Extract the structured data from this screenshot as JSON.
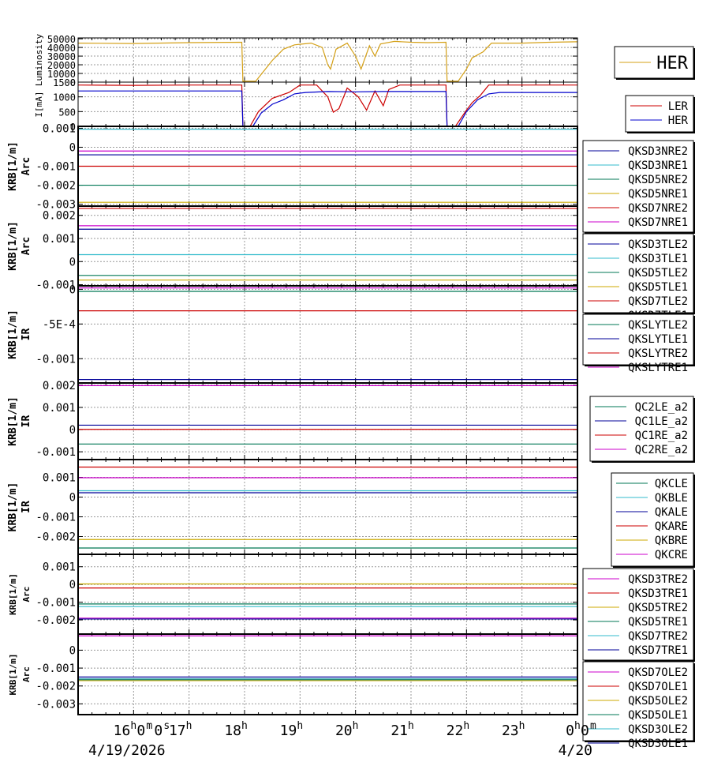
{
  "chart_data": [
    {
      "type": "line",
      "ylabel": "Luminosity",
      "ylim": [
        0,
        51000
      ],
      "yticks": [
        {
          "v": 50000,
          "label": "50000"
        },
        {
          "v": 40000,
          "label": "40000"
        },
        {
          "v": 30000,
          "label": "30000"
        },
        {
          "v": 20000,
          "label": "20000"
        },
        {
          "v": 10000,
          "label": "10000"
        },
        {
          "v": 0,
          "label": "0"
        }
      ],
      "legend": [
        "HER"
      ],
      "series": [
        {
          "name": "HER",
          "color": "#d4a017",
          "points": [
            [
              15,
              45000
            ],
            [
              16,
              44500
            ],
            [
              17,
              45500
            ],
            [
              17.95,
              46000
            ],
            [
              17.97,
              1000
            ],
            [
              18.2,
              1000
            ],
            [
              18.5,
              25000
            ],
            [
              18.7,
              38000
            ],
            [
              18.9,
              43000
            ],
            [
              19.2,
              45000
            ],
            [
              19.4,
              40000
            ],
            [
              19.5,
              20000
            ],
            [
              19.55,
              15000
            ],
            [
              19.65,
              38000
            ],
            [
              19.85,
              45000
            ],
            [
              20,
              30000
            ],
            [
              20.1,
              15000
            ],
            [
              20.25,
              42000
            ],
            [
              20.35,
              30000
            ],
            [
              20.45,
              44000
            ],
            [
              20.7,
              47000
            ],
            [
              21,
              46000
            ],
            [
              21.3,
              45500
            ],
            [
              21.63,
              46000
            ],
            [
              21.65,
              1000
            ],
            [
              21.85,
              1000
            ],
            [
              22,
              15000
            ],
            [
              22.1,
              28000
            ],
            [
              22.3,
              35000
            ],
            [
              22.45,
              45000
            ],
            [
              23,
              45000
            ],
            [
              23.5,
              46000
            ],
            [
              24,
              46500
            ]
          ]
        }
      ]
    },
    {
      "type": "line",
      "ylabel": "I[mA]",
      "ylim": [
        0,
        1500
      ],
      "yticks": [
        {
          "v": 1500,
          "label": "1500"
        },
        {
          "v": 1000,
          "label": "1000"
        },
        {
          "v": 500,
          "label": "500"
        },
        {
          "v": 0,
          "label": "0"
        }
      ],
      "legend": [
        "LER",
        "HER"
      ],
      "series": [
        {
          "name": "LER",
          "color": "#cc0000",
          "points": [
            [
              15,
              1400
            ],
            [
              16,
              1390
            ],
            [
              17,
              1400
            ],
            [
              17.95,
              1400
            ],
            [
              17.97,
              0
            ],
            [
              18.1,
              0
            ],
            [
              18.25,
              500
            ],
            [
              18.5,
              950
            ],
            [
              18.8,
              1150
            ],
            [
              19,
              1400
            ],
            [
              19.3,
              1400
            ],
            [
              19.5,
              1000
            ],
            [
              19.6,
              480
            ],
            [
              19.7,
              600
            ],
            [
              19.85,
              1300
            ],
            [
              20.05,
              1000
            ],
            [
              20.2,
              550
            ],
            [
              20.35,
              1200
            ],
            [
              20.5,
              700
            ],
            [
              20.6,
              1250
            ],
            [
              20.8,
              1400
            ],
            [
              21,
              1400
            ],
            [
              21.63,
              1400
            ],
            [
              21.65,
              0
            ],
            [
              21.8,
              0
            ],
            [
              22,
              550
            ],
            [
              22.1,
              800
            ],
            [
              22.25,
              1050
            ],
            [
              22.4,
              1400
            ],
            [
              23,
              1400
            ],
            [
              24,
              1400
            ]
          ]
        },
        {
          "name": "HER",
          "color": "#0000cc",
          "points": [
            [
              15,
              1200
            ],
            [
              16,
              1200
            ],
            [
              17,
              1200
            ],
            [
              17.95,
              1200
            ],
            [
              17.97,
              0
            ],
            [
              18.15,
              0
            ],
            [
              18.3,
              450
            ],
            [
              18.5,
              750
            ],
            [
              18.7,
              900
            ],
            [
              18.9,
              1100
            ],
            [
              19.1,
              1150
            ],
            [
              19.5,
              1180
            ],
            [
              20,
              1170
            ],
            [
              20.5,
              1180
            ],
            [
              21,
              1180
            ],
            [
              21.63,
              1180
            ],
            [
              21.65,
              0
            ],
            [
              21.85,
              0
            ],
            [
              22,
              500
            ],
            [
              22.2,
              900
            ],
            [
              22.4,
              1100
            ],
            [
              22.6,
              1150
            ],
            [
              23,
              1150
            ],
            [
              24,
              1150
            ]
          ]
        }
      ]
    },
    {
      "type": "line",
      "ylabel": "KRB[1/m]",
      "sublabel": "Arc",
      "ylim": [
        -0.0031,
        0.0011
      ],
      "yticks": [
        {
          "v": 0.001,
          "label": "0.001"
        },
        {
          "v": 0,
          "label": "0"
        },
        {
          "v": -0.001,
          "label": "-0.001"
        },
        {
          "v": -0.002,
          "label": "-0.002"
        },
        {
          "v": -0.003,
          "label": "-0.003"
        }
      ],
      "legend": [
        "QKSD3NRE2",
        "QKSD3NRE1",
        "QKSD5NRE2",
        "QKSD5NRE1",
        "QKSD7NRE2",
        "QKSD7NRE1"
      ],
      "series": [
        {
          "name": "QKSD3NRE2",
          "color": "#000099",
          "value": -0.0004
        },
        {
          "name": "QKSD3NRE1",
          "color": "#33bbcc",
          "value": 0.00095
        },
        {
          "name": "QKSD5NRE2",
          "color": "#007755",
          "value": -0.002
        },
        {
          "name": "QKSD5NRE1",
          "color": "#ccaa00",
          "value": -0.0029
        },
        {
          "name": "QKSD7NRE2",
          "color": "#cc0000",
          "value": -0.001
        },
        {
          "name": "QKSD7NRE1",
          "color": "#cc00cc",
          "value": -0.0002
        }
      ]
    },
    {
      "type": "line",
      "ylabel": "KRB[1/m]",
      "sublabel": "Arc",
      "ylim": [
        -0.00105,
        0.0024
      ],
      "yticks": [
        {
          "v": 0.002,
          "label": "0.002"
        },
        {
          "v": 0.001,
          "label": "0.001"
        },
        {
          "v": 0,
          "label": "0"
        },
        {
          "v": -0.001,
          "label": "-0.001"
        }
      ],
      "legend": [
        "QKSD3TLE2",
        "QKSD3TLE1",
        "QKSD5TLE2",
        "QKSD5TLE1",
        "QKSD7TLE2",
        "QKSD7TLE1"
      ],
      "series": [
        {
          "name": "QKSD3TLE2",
          "color": "#000099",
          "value": 0.0014
        },
        {
          "name": "QKSD3TLE1",
          "color": "#33bbcc",
          "value": 0.0003
        },
        {
          "name": "QKSD5TLE2",
          "color": "#007755",
          "value": -0.0006
        },
        {
          "name": "QKSD5TLE1",
          "color": "#ccaa00",
          "value": -0.0008
        },
        {
          "name": "QKSD7TLE2",
          "color": "#cc0000",
          "value": 0.0023
        },
        {
          "name": "QKSD7TLE1",
          "color": "#cc00cc",
          "value": 0.00155
        }
      ]
    },
    {
      "type": "line",
      "ylabel": "KRB[1/m]",
      "sublabel": "IR",
      "ylim": [
        -0.00135,
        5e-05
      ],
      "yticks": [
        {
          "v": 0,
          "label": "0"
        },
        {
          "v": -0.0005,
          "label": "-5E-4"
        },
        {
          "v": -0.001,
          "label": "-0.001"
        }
      ],
      "legend": [
        "QKSLYTLE2",
        "QKSLYTLE1",
        "QKSLYTRE2",
        "QKSLYTRE1"
      ],
      "series": [
        {
          "name": "QKSLYTLE2",
          "color": "#007755",
          "value": -3e-05
        },
        {
          "name": "QKSLYTLE1",
          "color": "#000099",
          "value": -0.0013
        },
        {
          "name": "QKSLYTRE2",
          "color": "#cc0000",
          "value": -0.00031
        },
        {
          "name": "QKSLYTRE1",
          "color": "#cc00cc",
          "value": 2e-05
        }
      ]
    },
    {
      "type": "line",
      "ylabel": "KRB[1/m]",
      "sublabel": "IR",
      "ylim": [
        -0.00135,
        0.0021
      ],
      "yticks": [
        {
          "v": 0.002,
          "label": "0.002"
        },
        {
          "v": 0.001,
          "label": "0.001"
        },
        {
          "v": 0,
          "label": "0"
        },
        {
          "v": -0.001,
          "label": "-0.001"
        }
      ],
      "legend": [
        "QC2LE_a2",
        "QC1LE_a2",
        "QC1RE_a2",
        "QC2RE_a2"
      ],
      "series": [
        {
          "name": "QC2LE_a2",
          "color": "#007755",
          "value": -0.00065
        },
        {
          "name": "QC1LE_a2",
          "color": "#000099",
          "value": 0.0002
        },
        {
          "name": "QC1RE_a2",
          "color": "#cc0000",
          "value": 1e-05
        },
        {
          "name": "QC2RE_a2",
          "color": "#cc00cc",
          "value": 0.00198
        }
      ]
    },
    {
      "type": "line",
      "ylabel": "KRB[1/m]",
      "sublabel": "IR",
      "ylim": [
        -0.0029,
        0.0019
      ],
      "yticks": [
        {
          "v": 0.001,
          "label": "0.001"
        },
        {
          "v": 0,
          "label": "0"
        },
        {
          "v": -0.001,
          "label": "-0.001"
        },
        {
          "v": -0.002,
          "label": "-0.002"
        }
      ],
      "legend": [
        "QKCLE",
        "QKBLE",
        "QKALE",
        "QKARE",
        "QKBRE",
        "QKCRE"
      ],
      "series": [
        {
          "name": "QKCLE",
          "color": "#007755",
          "value": -0.00258
        },
        {
          "name": "QKBLE",
          "color": "#33bbcc",
          "value": 0.00032
        },
        {
          "name": "QKALE",
          "color": "#000099",
          "value": 0.00022
        },
        {
          "name": "QKARE",
          "color": "#cc0000",
          "value": 0.00152
        },
        {
          "name": "QKBRE",
          "color": "#ccaa00",
          "value": -0.00215
        },
        {
          "name": "QKCRE",
          "color": "#cc00cc",
          "value": 0.00098
        }
      ]
    },
    {
      "type": "line",
      "ylabel": "KRB[1/m]",
      "sublabel": "Arc",
      "ylim": [
        -0.0028,
        0.0017
      ],
      "yticks": [
        {
          "v": 0.001,
          "label": "0.001"
        },
        {
          "v": 0,
          "label": "0"
        },
        {
          "v": -0.001,
          "label": "-0.001"
        },
        {
          "v": -0.002,
          "label": "-0.002"
        }
      ],
      "legend": [
        "QKSD3TRE2",
        "QKSD3TRE1",
        "QKSD5TRE2",
        "QKSD5TRE1",
        "QKSD7TRE2",
        "QKSD7TRE1"
      ],
      "series": [
        {
          "name": "QKSD3TRE2",
          "color": "#cc00cc",
          "value": -0.0019
        },
        {
          "name": "QKSD3TRE1",
          "color": "#cc0000",
          "value": -0.0002
        },
        {
          "name": "QKSD5TRE2",
          "color": "#ccaa00",
          "value": 3e-05
        },
        {
          "name": "QKSD5TRE1",
          "color": "#007755",
          "value": -0.0011
        },
        {
          "name": "QKSD7TRE2",
          "color": "#33bbcc",
          "value": -0.00125
        },
        {
          "name": "QKSD7TRE1",
          "color": "#000099",
          "value": -0.00195
        }
      ]
    },
    {
      "type": "line",
      "ylabel": "KRB[1/m]",
      "sublabel": "Arc",
      "ylim": [
        -0.0036,
        0.0009
      ],
      "yticks": [
        {
          "v": 0,
          "label": "0"
        },
        {
          "v": -0.001,
          "label": "-0.001"
        },
        {
          "v": -0.002,
          "label": "-0.002"
        },
        {
          "v": -0.003,
          "label": "-0.003"
        }
      ],
      "legend": [
        "QKSD7OLE2",
        "QKSD7OLE1",
        "QKSD5OLE2",
        "QKSD5OLE1",
        "QKSD3OLE2",
        "QKSD3OLE1"
      ],
      "series": [
        {
          "name": "QKSD7OLE2",
          "color": "#cc00cc",
          "value": 0.0008
        },
        {
          "name": "QKSD7OLE1",
          "color": "#cc0000",
          "value": -0.0016
        },
        {
          "name": "QKSD5OLE2",
          "color": "#ccaa00",
          "value": -0.0017
        },
        {
          "name": "QKSD5OLE1",
          "color": "#007755",
          "value": -0.00165
        },
        {
          "name": "QKSD3OLE2",
          "color": "#33bbcc",
          "value": -0.0016
        },
        {
          "name": "QKSD3OLE1",
          "color": "#000099",
          "value": -0.0015
        }
      ]
    }
  ],
  "x_axis": {
    "range_hours": [
      15.0,
      24.0
    ],
    "ticks": [
      {
        "hour": 16,
        "h": "16",
        "m": "0",
        "s": "0"
      },
      {
        "hour": 17,
        "h": "17"
      },
      {
        "hour": 18,
        "h": "18"
      },
      {
        "hour": 19,
        "h": "19"
      },
      {
        "hour": 20,
        "h": "20"
      },
      {
        "hour": 21,
        "h": "21"
      },
      {
        "hour": 22,
        "h": "22"
      },
      {
        "hour": 23,
        "h": "23"
      },
      {
        "hour": 24,
        "h": "0",
        "m": "0"
      }
    ],
    "date_start": "4/19/2026",
    "date_end": "4/20"
  }
}
